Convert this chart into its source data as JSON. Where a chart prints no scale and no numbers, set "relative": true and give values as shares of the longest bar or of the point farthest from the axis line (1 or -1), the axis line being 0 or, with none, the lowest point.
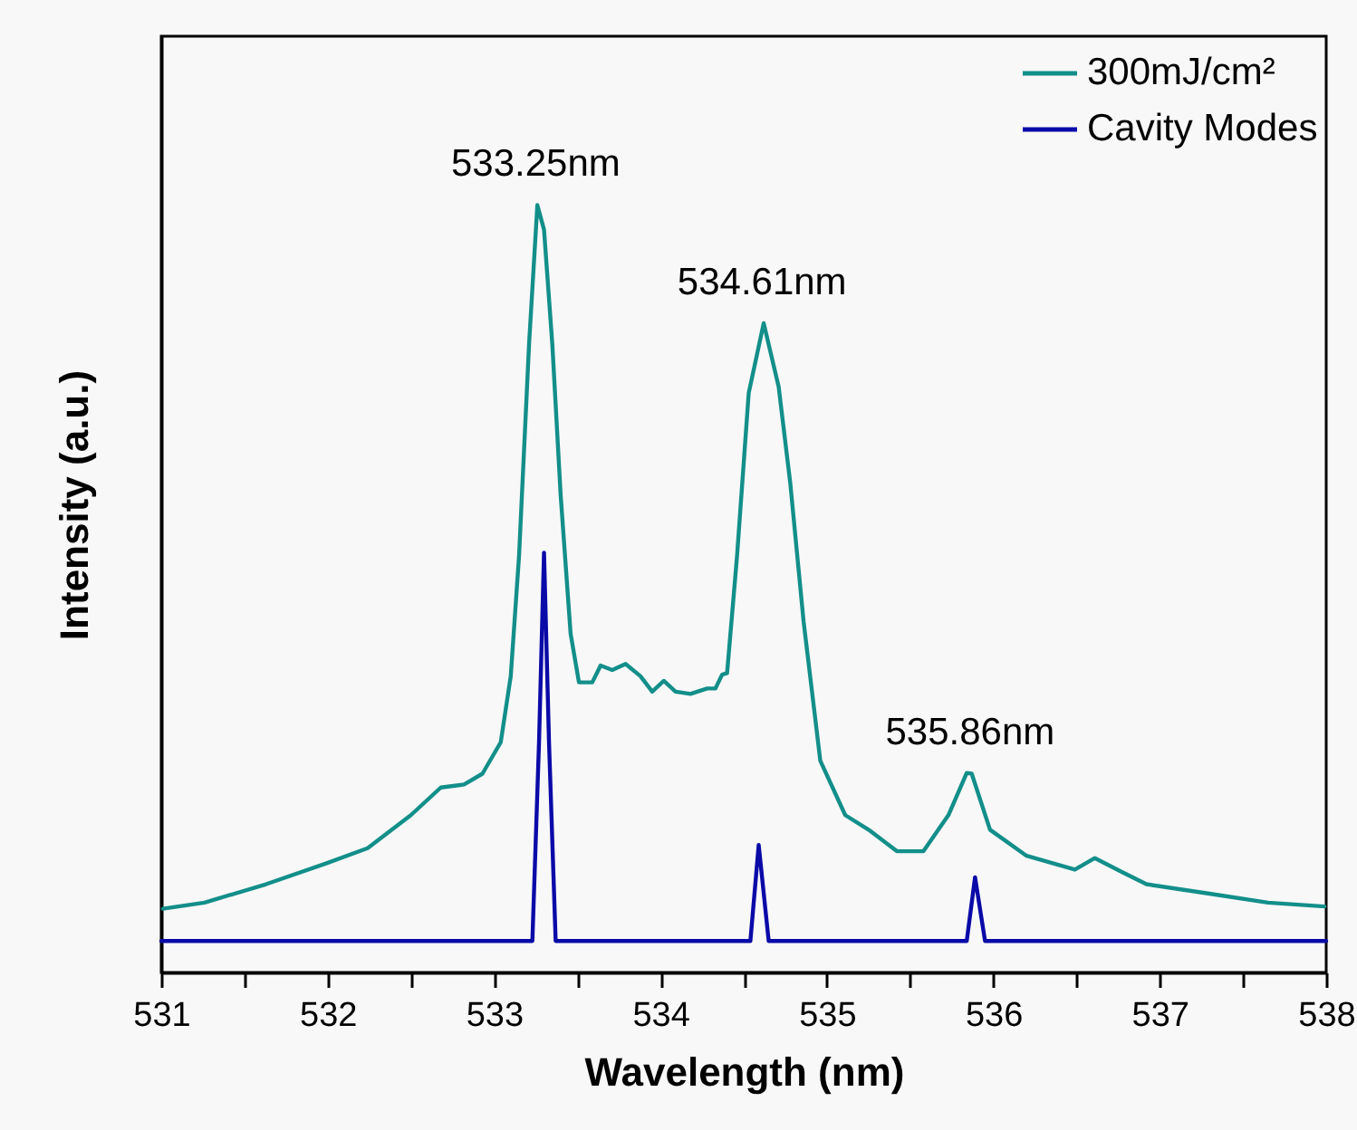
{
  "chart_data": {
    "type": "line",
    "relative": true,
    "xlabel": "Wavelength (nm)",
    "ylabel": "Intensity (a.u.)",
    "xlim": [
      531,
      538
    ],
    "xticks": [
      531,
      {
        "value": 531.5,
        "label": null
      },
      532,
      {
        "value": 532.5,
        "label": null
      },
      533,
      {
        "value": 533.5,
        "label": null
      },
      534,
      {
        "value": 534.5,
        "label": null
      },
      535,
      {
        "value": 535.5,
        "label": null
      },
      536,
      {
        "value": 536.5,
        "label": null
      },
      537,
      {
        "value": 537.5,
        "label": null
      },
      538
    ],
    "legend": "top right",
    "grid": false,
    "marker": "none",
    "line_style": "solid",
    "annotations": [
      {
        "text": "533.25nm",
        "x": 533.25,
        "y": 1.0
      },
      {
        "text": "534.61nm",
        "x": 534.61,
        "y": 0.846
      },
      {
        "text": "535.86nm",
        "x": 535.86,
        "y": 0.26
      }
    ],
    "series": [
      {
        "name": "300mJ/cm²",
        "color": "#138f8a",
        "x": [
          531.01,
          531.26,
          531.63,
          531.99,
          532.24,
          532.5,
          532.68,
          532.82,
          532.93,
          533.04,
          533.1,
          533.15,
          533.21,
          533.26,
          533.3,
          533.35,
          533.4,
          533.46,
          533.51,
          533.59,
          533.64,
          533.71,
          533.79,
          533.88,
          533.95,
          534.02,
          534.09,
          534.18,
          534.28,
          534.33,
          534.37,
          534.4,
          534.46,
          534.53,
          534.62,
          534.71,
          534.78,
          534.86,
          534.96,
          535.11,
          535.25,
          535.42,
          535.58,
          535.73,
          535.84,
          535.87,
          535.98,
          536.2,
          536.49,
          536.61,
          536.78,
          536.92,
          537.29,
          537.65,
          537.99
        ],
        "values": [
          0.083,
          0.091,
          0.115,
          0.142,
          0.162,
          0.205,
          0.241,
          0.245,
          0.259,
          0.3,
          0.386,
          0.543,
          0.818,
          1.0,
          0.968,
          0.818,
          0.622,
          0.441,
          0.378,
          0.378,
          0.4,
          0.394,
          0.402,
          0.386,
          0.366,
          0.38,
          0.366,
          0.363,
          0.37,
          0.37,
          0.388,
          0.39,
          0.543,
          0.755,
          0.846,
          0.763,
          0.637,
          0.457,
          0.276,
          0.205,
          0.186,
          0.158,
          0.158,
          0.205,
          0.26,
          0.259,
          0.186,
          0.152,
          0.134,
          0.149,
          0.13,
          0.115,
          0.103,
          0.091,
          0.086
        ]
      },
      {
        "name": "Cavity Modes",
        "color": "#0a0aa8",
        "x": [
          531,
          533.23,
          533.27,
          533.3,
          533.33,
          533.37,
          534.54,
          534.59,
          534.65,
          535.84,
          535.89,
          535.95,
          538
        ],
        "values": [
          0.041,
          0.041,
          0.3,
          0.547,
          0.3,
          0.041,
          0.041,
          0.166,
          0.041,
          0.041,
          0.124,
          0.041,
          0.041
        ]
      }
    ]
  }
}
